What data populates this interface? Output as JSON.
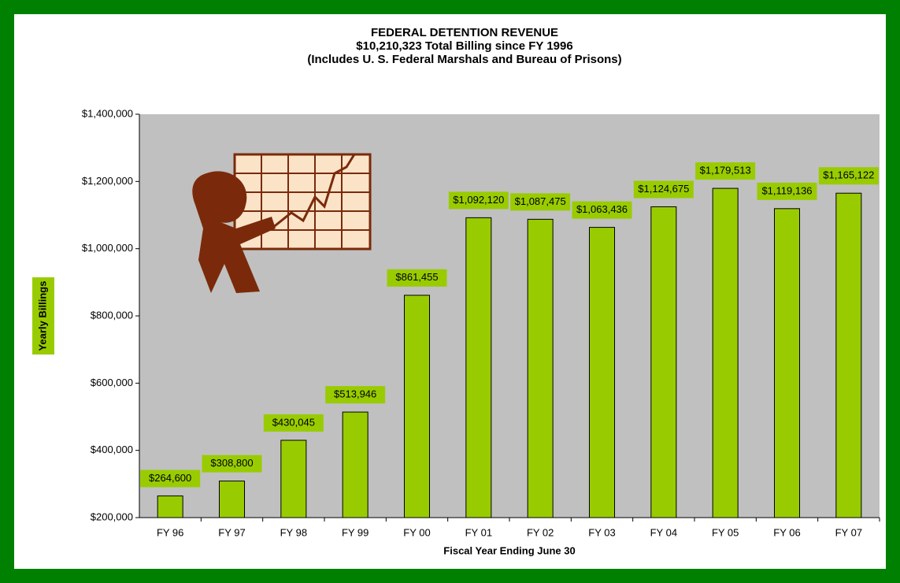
{
  "chart_data": {
    "type": "bar",
    "title": [
      "FEDERAL DETENTION REVENUE",
      "$10,210,323 Total Billing since FY 1996",
      "(Includes U. S. Federal Marshals and Bureau of Prisons)"
    ],
    "x_label": "Fiscal Year Ending June 30",
    "y_label": "Yearly Billings",
    "categories": [
      "FY 96",
      "FY 97",
      "FY 98",
      "FY 99",
      "FY 00",
      "FY 01",
      "FY 02",
      "FY 03",
      "FY 04",
      "FY 05",
      "FY 06",
      "FY 07"
    ],
    "values": [
      264600,
      308800,
      430045,
      513946,
      861455,
      1092120,
      1087475,
      1063436,
      1124675,
      1179513,
      1119136,
      1165122
    ],
    "value_labels": [
      "$264,600",
      "$308,800",
      "$430,045",
      "$513,946",
      "$861,455",
      "$1,092,120",
      "$1,087,475",
      "$1,063,436",
      "$1,124,675",
      "$1,179,513",
      "$1,119,136",
      "$1,165,122"
    ],
    "color": "#99cc00",
    "ylim": [
      200000,
      1400000
    ],
    "yticks": [
      {
        "value": 200000,
        "label": "$200,000"
      },
      {
        "value": 400000,
        "label": "$400,000"
      },
      {
        "value": 600000,
        "label": "$600,000"
      },
      {
        "value": 800000,
        "label": "$800,000"
      },
      {
        "value": 1000000,
        "label": "$1,000,000"
      },
      {
        "value": 1200000,
        "label": "$1,200,000"
      },
      {
        "value": 1400000,
        "label": "$1,400,000"
      }
    ],
    "grid": false
  }
}
